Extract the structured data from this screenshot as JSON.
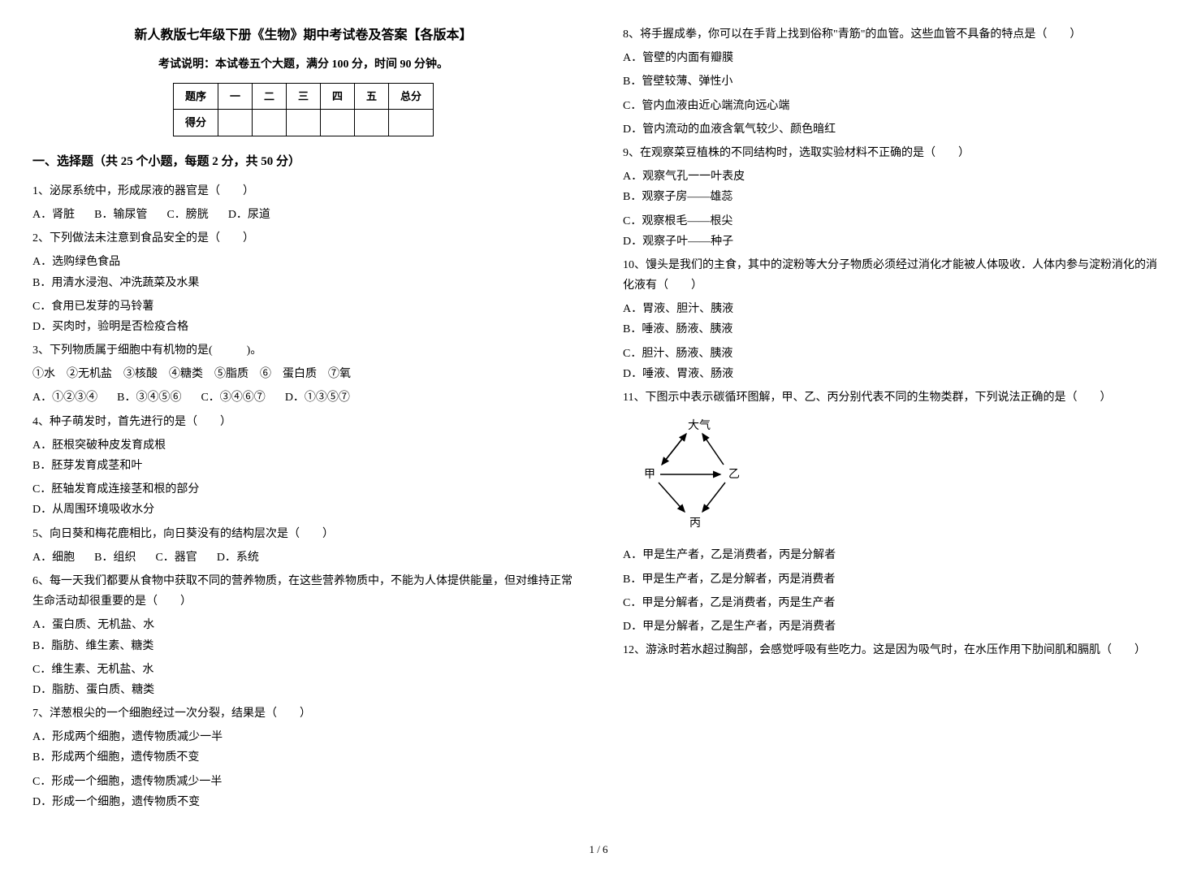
{
  "header": {
    "title": "新人教版七年级下册《生物》期中考试卷及答案【各版本】",
    "subtitle": "考试说明：本试卷五个大题，满分 100 分，时间 90 分钟。"
  },
  "score_table": {
    "headers": [
      "题序",
      "一",
      "二",
      "三",
      "四",
      "五",
      "总分"
    ],
    "row_label": "得分"
  },
  "section1_title": "一、选择题（共 25 个小题，每题 2 分，共 50 分）",
  "questions_left": [
    {
      "stem": "1、泌尿系统中，形成尿液的器官是（　　）",
      "opts": [
        "A．肾脏",
        "B．输尿管",
        "C．膀胱",
        "D．尿道"
      ],
      "layout": "4"
    },
    {
      "stem": "2、下列做法未注意到食品安全的是（　　）",
      "opts": [
        "A．选购绿色食品",
        "B．用清水浸泡、冲洗蔬菜及水果",
        "C．食用已发芽的马铃薯",
        "D．买肉时，验明是否检疫合格"
      ],
      "layout": "2"
    },
    {
      "stem": "3、下列物质属于细胞中有机物的是(　　　)。",
      "extra": "①水　②无机盐　③核酸　④糖类　⑤脂质　⑥　蛋白质　⑦氧",
      "opts": [
        "A．①②③④",
        "B．③④⑤⑥",
        "C．③④⑥⑦",
        "D．①③⑤⑦"
      ],
      "layout": "4"
    },
    {
      "stem": "4、种子萌发时，首先进行的是（　　）",
      "opts": [
        "A．胚根突破种皮发育成根",
        "B．胚芽发育成茎和叶",
        "C．胚轴发育成连接茎和根的部分",
        "D．从周围环境吸收水分"
      ],
      "layout": "2"
    },
    {
      "stem": "5、向日葵和梅花鹿相比，向日葵没有的结构层次是（　　）",
      "opts": [
        "A．细胞",
        "B．组织",
        "C．器官",
        "D．系统"
      ],
      "layout": "4"
    },
    {
      "stem": "6、每一天我们都要从食物中获取不同的营养物质，在这些营养物质中，不能为人体提供能量，但对维持正常生命活动却很重要的是（　　）",
      "opts": [
        "A．蛋白质、无机盐、水",
        "B．脂肪、维生素、糖类",
        "C．维生素、无机盐、水",
        "D．脂肪、蛋白质、糖类"
      ],
      "layout": "2"
    },
    {
      "stem": "7、洋葱根尖的一个细胞经过一次分裂，结果是（　　）",
      "opts": [
        "A．形成两个细胞，遗传物质减少一半",
        "B．形成两个细胞，遗传物质不变",
        "C．形成一个细胞，遗传物质减少一半",
        "D．形成一个细胞，遗传物质不变"
      ],
      "layout": "2"
    }
  ],
  "questions_right": [
    {
      "stem": "8、将手握成拳，你可以在手背上找到俗称\"青筋\"的血管。这些血管不具备的特点是（　　）",
      "opts": [
        "A．管壁的内面有瓣膜",
        "B．管壁较薄、弹性小",
        "C．管内血液由近心端流向远心端",
        "D．管内流动的血液含氧气较少、颜色暗红"
      ],
      "layout": "1"
    },
    {
      "stem": "9、在观察菜豆植株的不同结构时，选取实验材料不正确的是（　　）",
      "opts": [
        "A．观察气孔一一叶表皮",
        "B．观察子房——雄蕊",
        "C．观察根毛——根尖",
        "D．观察子叶——种子"
      ],
      "layout": "2"
    },
    {
      "stem": "10、馒头是我们的主食，其中的淀粉等大分子物质必须经过消化才能被人体吸收．人体内参与淀粉消化的消化液有（　　）",
      "opts": [
        "A．胃液、胆汁、胰液",
        "B．唾液、肠液、胰液",
        "C．胆汁、肠液、胰液",
        "D．唾液、胃液、肠液"
      ],
      "layout": "2"
    },
    {
      "stem": "11、下图示中表示碳循环图解，甲、乙、丙分别代表不同的生物类群，下列说法正确的是（　　）",
      "diagram": true,
      "opts": [
        "A．甲是生产者，乙是消费者，丙是分解者",
        "B．甲是生产者，乙是分解者，丙是消费者",
        "C．甲是分解者，乙是消费者，丙是生产者",
        "D．甲是分解者，乙是生产者，丙是消费者"
      ],
      "layout": "1"
    },
    {
      "stem": "12、游泳时若水超过胸部，会感觉呼吸有些吃力。这是因为吸气时，在水压作用下肋间肌和膈肌（　　）",
      "opts": [],
      "layout": "1"
    }
  ],
  "diagram_labels": {
    "top": "大气",
    "left": "甲",
    "right": "乙",
    "bottom": "丙"
  },
  "diagram_style": {
    "width": 150,
    "height": 140,
    "stroke": "#000",
    "stroke_width": 1.5,
    "font_size": 14
  },
  "footer": "1 / 6"
}
